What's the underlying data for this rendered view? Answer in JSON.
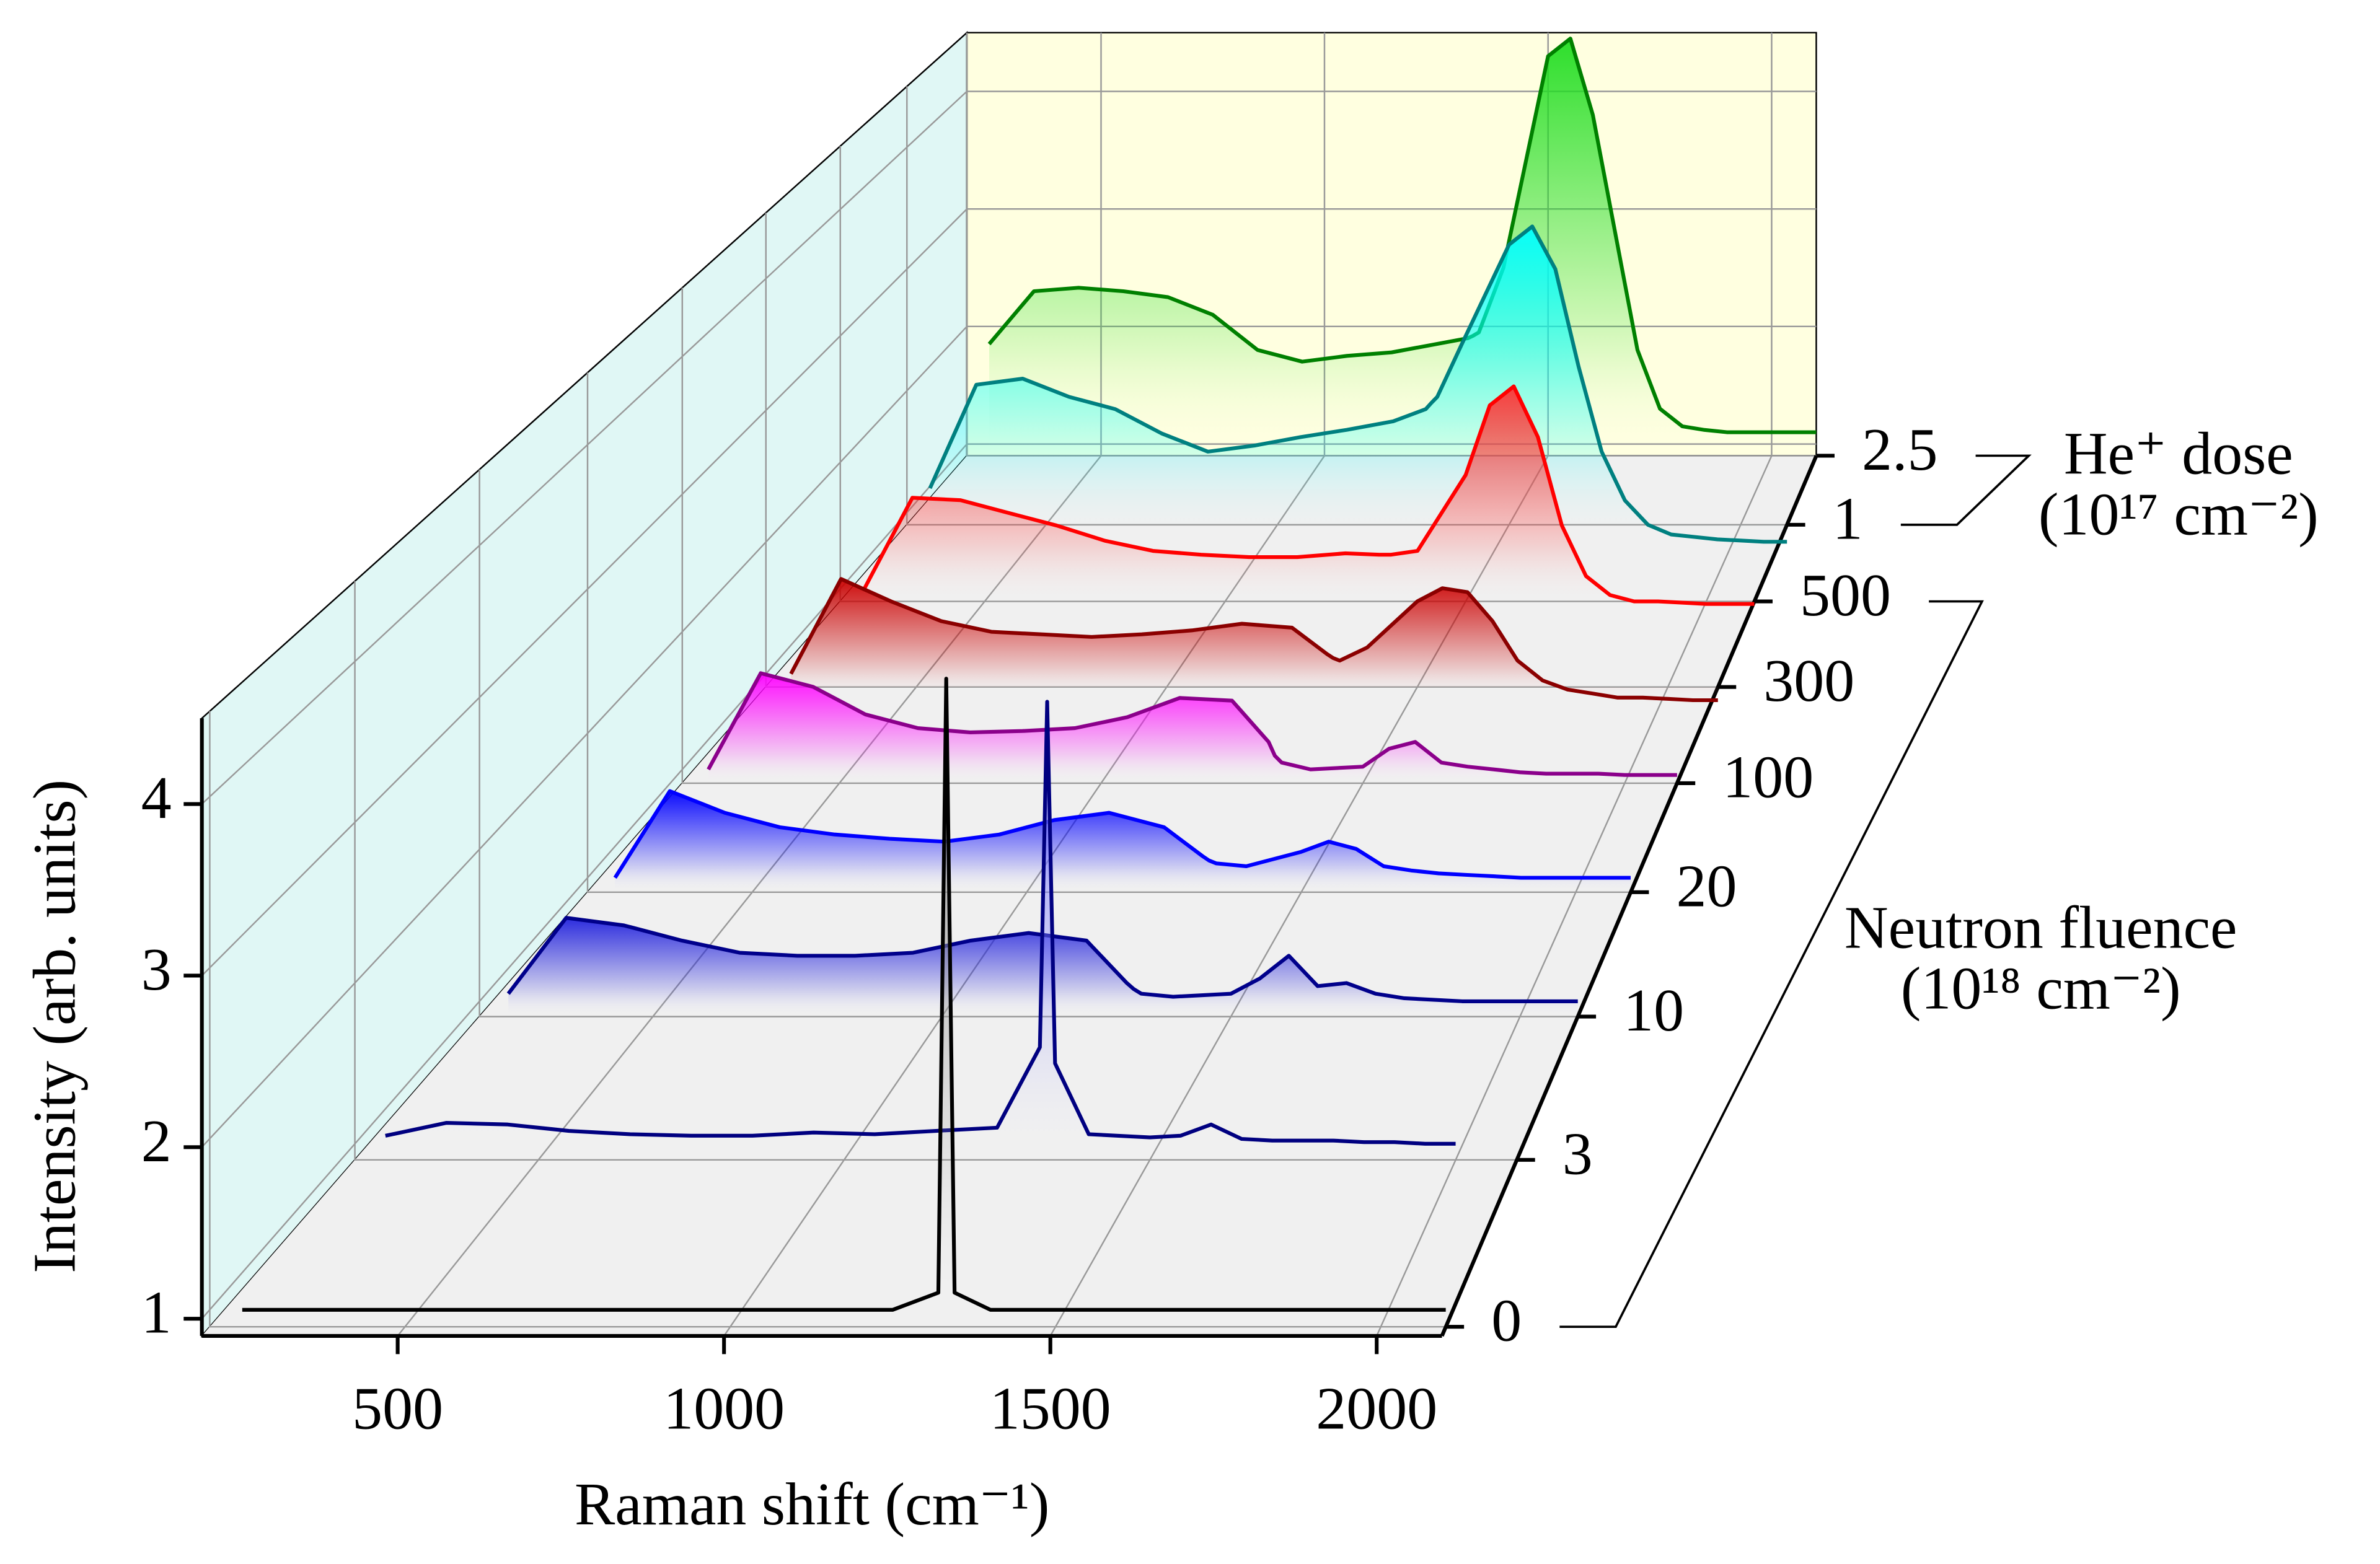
{
  "chart_data": {
    "type": "waterfall",
    "x_label": "Raman shift (cm⁻¹)",
    "y_label": "Intensity (arb. units)",
    "x": [
      250,
      350,
      450,
      550,
      650,
      750,
      850,
      950,
      1050,
      1150,
      1250,
      1320,
      1332,
      1345,
      1400,
      1500,
      1550,
      1600,
      1650,
      1700,
      1750,
      1800,
      1850,
      1900,
      1950,
      2000,
      2050,
      2100
    ],
    "xlim": [
      200,
      2100
    ],
    "xticks": [
      500,
      1000,
      1500,
      2000
    ],
    "ylim": [
      0.9,
      4.5
    ],
    "yticks": [
      1,
      2,
      3,
      4
    ],
    "grid": true,
    "groups": [
      {
        "label": [
          "Neutron fluence",
          "(10¹⁸ cm⁻²)"
        ],
        "series": [
          {
            "name": "0",
            "color": "#000000",
            "fill": "#999999",
            "values": [
              1.0,
              1.0,
              1.0,
              1.0,
              1.0,
              1.0,
              1.0,
              1.0,
              1.0,
              1.0,
              1.0,
              1.1,
              4.69,
              1.1,
              1.0,
              1.0,
              1.0,
              1.0,
              1.0,
              1.0,
              1.0,
              1.0,
              1.0,
              1.0,
              1.0,
              1.0,
              1.0,
              1.0
            ]
          },
          {
            "name": "3",
            "color": "#000080",
            "fill": "#8888ff",
            "values": [
              1.05,
              1.13,
              1.12,
              1.08,
              1.06,
              1.05,
              1.05,
              1.07,
              1.06,
              1.08,
              1.1,
              1.6,
              3.75,
              1.5,
              1.06,
              1.04,
              1.05,
              1.12,
              1.03,
              1.02,
              1.02,
              1.02,
              1.01,
              1.01,
              1.0,
              1.0,
              null,
              null
            ]
          },
          {
            "name": "10",
            "color": "#00008b",
            "fill": "#2222dd",
            "values": [
              1.05,
              1.55,
              1.5,
              1.4,
              1.32,
              1.3,
              1.3,
              1.32,
              1.4,
              1.45,
              1.4,
              1.12,
              1.08,
              1.05,
              1.03,
              1.05,
              1.15,
              1.3,
              1.1,
              1.12,
              1.05,
              1.02,
              1.01,
              1.0,
              1.0,
              1.0,
              1.0,
              1.0
            ]
          },
          {
            "name": "20",
            "color": "#0000ff",
            "fill": "#0000ff",
            "values": [
              1.0,
              1.6,
              1.45,
              1.35,
              1.3,
              1.27,
              1.25,
              1.3,
              1.4,
              1.45,
              1.35,
              1.15,
              1.12,
              1.1,
              1.08,
              1.18,
              1.25,
              1.2,
              1.08,
              1.05,
              1.03,
              1.02,
              1.01,
              1.0,
              1.0,
              1.0,
              1.0,
              1.0
            ]
          },
          {
            "name": "100",
            "color": "#8b008b",
            "fill": "#ff00ff",
            "values": [
              1.0,
              1.7,
              1.6,
              1.4,
              1.3,
              1.27,
              1.28,
              1.3,
              1.38,
              1.52,
              1.5,
              1.2,
              1.1,
              1.05,
              1.0,
              1.02,
              1.15,
              1.2,
              1.05,
              1.02,
              1.0,
              0.98,
              0.97,
              0.97,
              0.97,
              0.96,
              0.96,
              0.96
            ]
          },
          {
            "name": "300",
            "color": "#8b0000",
            "fill": "#cc0000",
            "values": [
              1.0,
              1.72,
              1.55,
              1.4,
              1.32,
              1.3,
              1.28,
              1.3,
              1.33,
              1.38,
              1.35,
              1.15,
              1.12,
              1.1,
              1.2,
              1.55,
              1.65,
              1.62,
              1.4,
              1.1,
              0.95,
              0.88,
              0.85,
              0.82,
              0.82,
              0.81,
              0.8,
              0.8
            ]
          },
          {
            "name": "500",
            "color": "#ff0000",
            "fill": "#ff3333",
            "values": [
              1.0,
              1.72,
              1.7,
              1.6,
              1.5,
              1.38,
              1.3,
              1.27,
              1.25,
              1.25,
              1.28,
              1.27,
              1.27,
              1.27,
              1.3,
              1.9,
              2.45,
              2.6,
              2.2,
              1.5,
              1.1,
              0.95,
              0.9,
              0.9,
              0.89,
              0.88,
              0.88,
              0.88
            ]
          }
        ]
      },
      {
        "label": [
          "He⁺ dose",
          "(10¹⁷ cm⁻²)"
        ],
        "series": [
          {
            "name": "1",
            "color": "#008080",
            "fill": "#00ffff",
            "values": [
              1.2,
              2.05,
              2.1,
              1.95,
              1.85,
              1.65,
              1.5,
              1.55,
              1.62,
              1.68,
              1.75,
              1.85,
              1.9,
              1.95,
              2.4,
              3.2,
              3.35,
              3.0,
              2.2,
              1.5,
              1.1,
              0.9,
              0.82,
              0.8,
              0.78,
              0.77,
              0.76,
              0.76
            ]
          },
          {
            "name": "2.5",
            "color": "#008000",
            "fill": "#22dd22",
            "values": [
              1.85,
              2.3,
              2.33,
              2.3,
              2.25,
              2.1,
              1.8,
              1.7,
              1.75,
              1.78,
              1.85,
              1.9,
              1.92,
              1.95,
              2.5,
              4.3,
              4.45,
              3.8,
              2.8,
              1.8,
              1.3,
              1.15,
              1.12,
              1.1,
              1.1,
              1.1,
              1.1,
              1.1
            ]
          }
        ]
      }
    ]
  }
}
